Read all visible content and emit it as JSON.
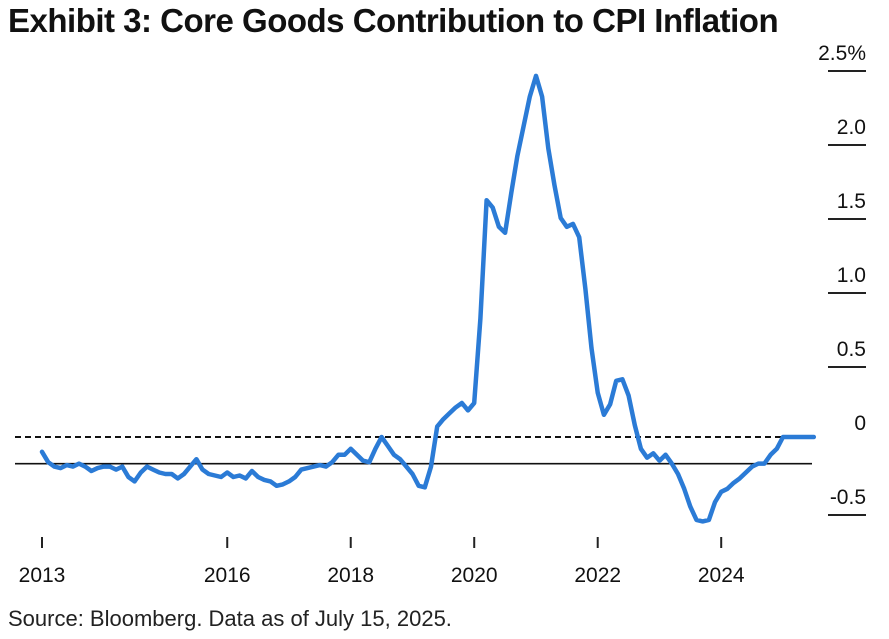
{
  "title": "Exhibit 3: Core Goods Contribution to CPI Inflation",
  "source": "Source: Bloomberg. Data as of July 15, 2025.",
  "chart_data": {
    "type": "line",
    "title": "Exhibit 3: Core Goods Contribution to CPI Inflation",
    "xlabel": "",
    "ylabel": "",
    "xlim": [
      2013,
      2025.6
    ],
    "ylim": [
      -0.65,
      2.55
    ],
    "x_ticks": [
      2013,
      2016,
      2018,
      2020,
      2022,
      2024
    ],
    "x_tick_labels": [
      "2013",
      "2016",
      "2018",
      "2020",
      "2022",
      "2024"
    ],
    "y_ticks": [
      2.5,
      2.0,
      1.5,
      1.0,
      0.5,
      0,
      -0.5
    ],
    "y_tick_labels": [
      "2.5%",
      "2.0",
      "1.5",
      "1.0",
      "0.5",
      "0",
      "-0.5"
    ],
    "reference_lines": [
      {
        "value": 0,
        "style": "dashed"
      },
      {
        "value": -0.18,
        "style": "solid"
      }
    ],
    "line_color": "#2b7bd6",
    "series": [
      {
        "x": [
          2013.0,
          2013.1,
          2013.2,
          2013.3,
          2013.4,
          2013.5,
          2013.6,
          2013.7,
          2013.8,
          2013.9,
          2014.0,
          2014.1,
          2014.2,
          2014.3,
          2014.4,
          2014.5,
          2014.6,
          2014.7,
          2014.8,
          2014.9,
          2015.0,
          2015.1,
          2015.2,
          2015.3,
          2015.4,
          2015.5,
          2015.6,
          2015.7,
          2015.8,
          2015.9,
          2016.0,
          2016.1,
          2016.2,
          2016.3,
          2016.4,
          2016.5,
          2016.6,
          2016.7,
          2016.8,
          2016.9,
          2017.0,
          2017.1,
          2017.2,
          2017.3,
          2017.4,
          2017.5,
          2017.6,
          2017.7,
          2017.8,
          2017.9,
          2018.0,
          2018.1,
          2018.2,
          2018.3,
          2018.4,
          2018.5,
          2018.6,
          2018.7,
          2018.8,
          2018.9,
          2019.0,
          2019.1,
          2019.2,
          2019.3,
          2019.4,
          2019.5,
          2019.6,
          2019.7,
          2019.8,
          2019.9,
          2020.0,
          2020.1,
          2020.2,
          2020.3,
          2020.4,
          2020.5,
          2020.6,
          2020.7,
          2020.8,
          2020.9,
          2021.0,
          2021.1,
          2021.2,
          2021.3,
          2021.4,
          2021.5,
          2021.6,
          2021.7,
          2021.8,
          2021.9,
          2022.0,
          2022.1,
          2022.2,
          2022.3,
          2022.4,
          2022.5,
          2022.6,
          2022.7,
          2022.8,
          2022.9,
          2023.0,
          2023.1,
          2023.2,
          2023.3,
          2023.4,
          2023.5,
          2023.6,
          2023.7,
          2023.8,
          2023.9,
          2024.0,
          2024.1,
          2024.2,
          2024.3,
          2024.4,
          2024.5,
          2024.6,
          2024.7,
          2024.8,
          2024.9,
          2025.0,
          2025.1,
          2025.2,
          2025.3,
          2025.4,
          2025.5
        ],
        "y": [
          -0.1,
          -0.17,
          -0.2,
          -0.21,
          -0.19,
          -0.2,
          -0.18,
          -0.2,
          -0.23,
          -0.21,
          -0.2,
          -0.2,
          -0.22,
          -0.2,
          -0.27,
          -0.3,
          -0.24,
          -0.2,
          -0.22,
          -0.24,
          -0.25,
          -0.25,
          -0.28,
          -0.25,
          -0.2,
          -0.15,
          -0.22,
          -0.25,
          -0.26,
          -0.27,
          -0.24,
          -0.27,
          -0.26,
          -0.28,
          -0.23,
          -0.27,
          -0.29,
          -0.3,
          -0.33,
          -0.32,
          -0.3,
          -0.27,
          -0.22,
          -0.21,
          -0.2,
          -0.19,
          -0.2,
          -0.17,
          -0.12,
          -0.12,
          -0.08,
          -0.12,
          -0.16,
          -0.17,
          -0.08,
          0.0,
          -0.06,
          -0.12,
          -0.15,
          -0.2,
          -0.25,
          -0.33,
          -0.34,
          -0.2,
          0.07,
          0.12,
          0.16,
          0.2,
          0.23,
          0.18,
          0.23,
          0.8,
          1.6,
          1.55,
          1.42,
          1.38,
          1.65,
          1.9,
          2.1,
          2.3,
          2.44,
          2.3,
          1.95,
          1.7,
          1.48,
          1.42,
          1.44,
          1.35,
          1.0,
          0.6,
          0.3,
          0.15,
          0.22,
          0.38,
          0.39,
          0.28,
          0.08,
          -0.08,
          -0.14,
          -0.11,
          -0.16,
          -0.12,
          -0.18,
          -0.25,
          -0.35,
          -0.47,
          -0.56,
          -0.57,
          -0.56,
          -0.44,
          -0.37,
          -0.35,
          -0.31,
          -0.28,
          -0.24,
          -0.2,
          -0.18,
          -0.18,
          -0.12,
          -0.08,
          0.0,
          0.0,
          0.0,
          0.0,
          0.0,
          0.0
        ]
      }
    ]
  }
}
